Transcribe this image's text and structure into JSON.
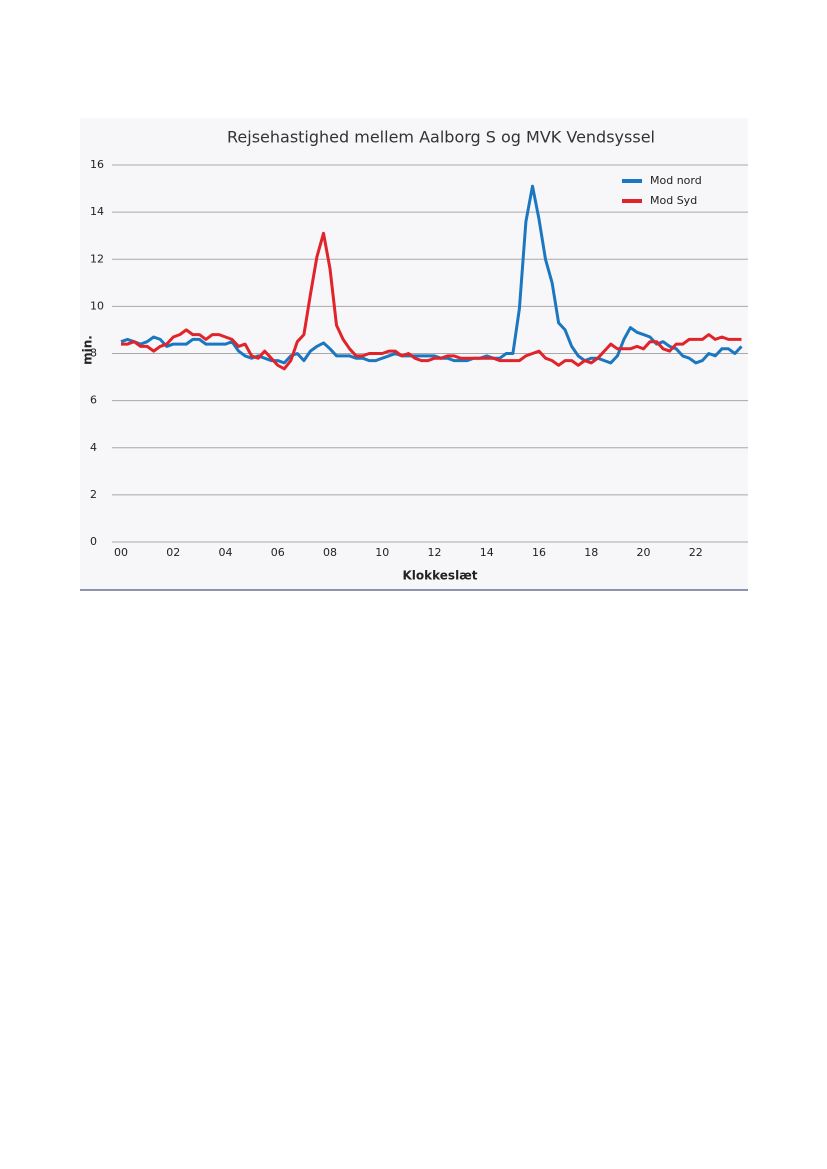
{
  "chart_data": {
    "type": "line",
    "title": "Rejsehastighed mellem Aalborg S og MVK Vendsyssel",
    "ylabel": "min.",
    "xlabel": "Klokkeslæt",
    "x": [
      0,
      0.25,
      0.5,
      0.75,
      1,
      1.25,
      1.5,
      1.75,
      2,
      2.25,
      2.5,
      2.75,
      3,
      3.25,
      3.5,
      3.75,
      4,
      4.25,
      4.5,
      4.75,
      5,
      5.25,
      5.5,
      5.75,
      6,
      6.25,
      6.5,
      6.75,
      7,
      7.25,
      7.5,
      7.75,
      8,
      8.25,
      8.5,
      8.75,
      9,
      9.25,
      9.5,
      9.75,
      10,
      10.25,
      10.5,
      10.75,
      11,
      11.25,
      11.5,
      11.75,
      12,
      12.25,
      12.5,
      12.75,
      13,
      13.25,
      13.5,
      13.75,
      14,
      14.25,
      14.5,
      14.75,
      15,
      15.25,
      15.5,
      15.75,
      16,
      16.25,
      16.5,
      16.75,
      17,
      17.25,
      17.5,
      17.75,
      18,
      18.25,
      18.5,
      18.75,
      19,
      19.25,
      19.5,
      19.75,
      20,
      20.25,
      20.5,
      20.75,
      21,
      21.25,
      21.5,
      21.75,
      22,
      22.25,
      22.5,
      22.75,
      23,
      23.25,
      23.5,
      23.75
    ],
    "series": [
      {
        "name": "Mod nord",
        "color": "#1b77c0",
        "values": [
          8.5,
          8.6,
          8.5,
          8.4,
          8.5,
          8.7,
          8.6,
          8.3,
          8.4,
          8.4,
          8.4,
          8.6,
          8.6,
          8.4,
          8.4,
          8.4,
          8.4,
          8.5,
          8.1,
          7.9,
          7.8,
          7.9,
          7.8,
          7.7,
          7.7,
          7.6,
          7.9,
          8.0,
          7.7,
          8.1,
          8.3,
          8.45,
          8.2,
          7.9,
          7.9,
          7.9,
          7.8,
          7.8,
          7.7,
          7.7,
          7.8,
          7.9,
          8.0,
          7.9,
          7.9,
          7.9,
          7.9,
          7.9,
          7.9,
          7.8,
          7.8,
          7.7,
          7.7,
          7.7,
          7.8,
          7.8,
          7.9,
          7.8,
          7.8,
          8.0,
          8.0,
          9.9,
          13.6,
          15.1,
          13.7,
          12.0,
          11.0,
          9.3,
          9.0,
          8.3,
          7.9,
          7.7,
          7.8,
          7.8,
          7.7,
          7.6,
          7.9,
          8.6,
          9.1,
          8.9,
          8.8,
          8.7,
          8.4,
          8.5,
          8.3,
          8.2,
          7.9,
          7.8,
          7.6,
          7.7,
          8.0,
          7.9,
          8.2,
          8.2,
          8.0,
          8.3
        ]
      },
      {
        "name": "Mod Syd",
        "color": "#e1232a",
        "values": [
          8.4,
          8.4,
          8.5,
          8.3,
          8.3,
          8.1,
          8.3,
          8.4,
          8.7,
          8.8,
          9.0,
          8.8,
          8.8,
          8.6,
          8.8,
          8.8,
          8.7,
          8.6,
          8.3,
          8.4,
          7.9,
          7.8,
          8.1,
          7.8,
          7.5,
          7.35,
          7.7,
          8.5,
          8.8,
          10.5,
          12.1,
          13.1,
          11.6,
          9.2,
          8.6,
          8.2,
          7.9,
          7.9,
          8.0,
          8.0,
          8.0,
          8.1,
          8.1,
          7.9,
          8.0,
          7.8,
          7.7,
          7.7,
          7.8,
          7.8,
          7.9,
          7.9,
          7.8,
          7.8,
          7.8,
          7.8,
          7.8,
          7.8,
          7.7,
          7.7,
          7.7,
          7.7,
          7.9,
          8.0,
          8.1,
          7.8,
          7.7,
          7.5,
          7.7,
          7.7,
          7.5,
          7.7,
          7.6,
          7.8,
          8.1,
          8.4,
          8.2,
          8.2,
          8.2,
          8.3,
          8.2,
          8.5,
          8.5,
          8.2,
          8.1,
          8.4,
          8.4,
          8.6,
          8.6,
          8.6,
          8.8,
          8.6,
          8.7,
          8.6,
          8.6,
          8.6
        ]
      }
    ],
    "xlim": [
      0,
      24
    ],
    "xticks": [
      {
        "value": 0,
        "label": "00"
      },
      {
        "value": 2,
        "label": "02"
      },
      {
        "value": 4,
        "label": "04"
      },
      {
        "value": 6,
        "label": "06"
      },
      {
        "value": 8,
        "label": "08"
      },
      {
        "value": 10,
        "label": "10"
      },
      {
        "value": 12,
        "label": "12"
      },
      {
        "value": 14,
        "label": "14"
      },
      {
        "value": 16,
        "label": "16"
      },
      {
        "value": 18,
        "label": "18"
      },
      {
        "value": 20,
        "label": "20"
      },
      {
        "value": 22,
        "label": "22"
      }
    ],
    "ylim": [
      0,
      16
    ],
    "yticks": [
      0,
      2,
      4,
      6,
      8,
      10,
      12,
      14,
      16
    ],
    "grid": true,
    "legend": "top-right"
  }
}
